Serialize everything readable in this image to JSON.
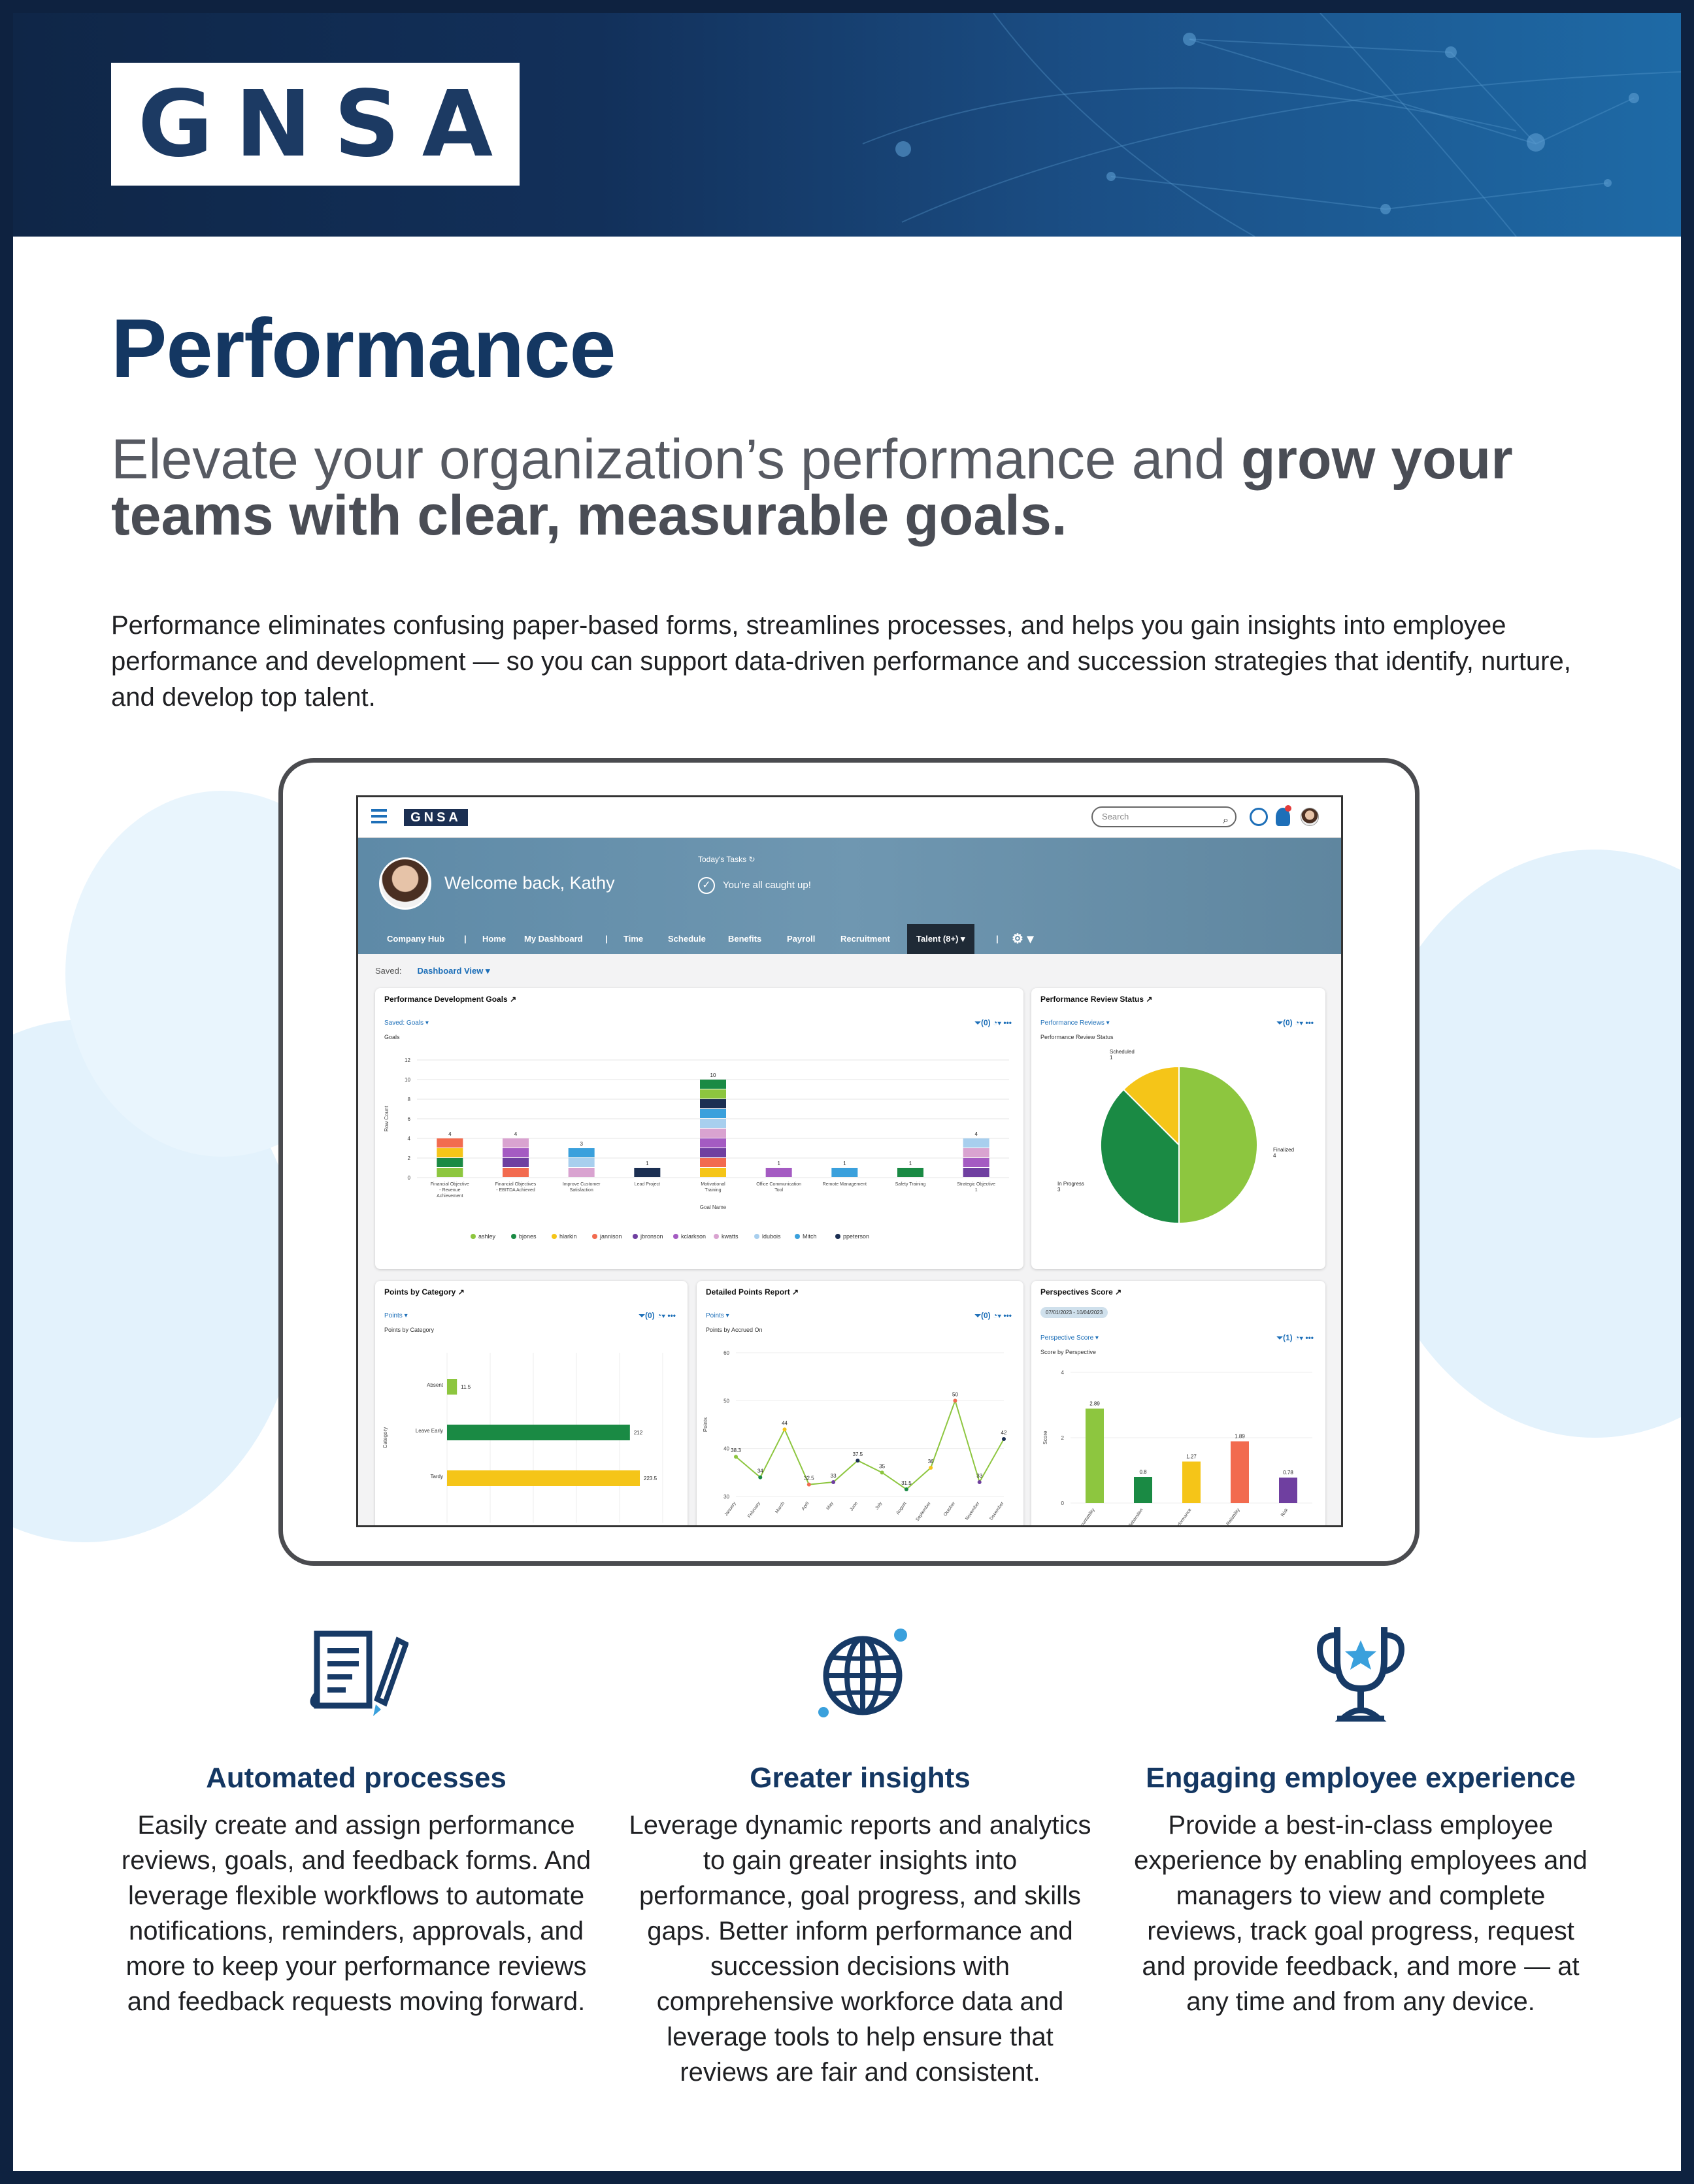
{
  "brand": {
    "logo": "GNSA"
  },
  "title": "Performance",
  "subtitle": {
    "regular": "Elevate your organization’s performance and ",
    "bold": "grow your teams with clear, measurable goals."
  },
  "intro": "Performance eliminates confusing paper-based forms, streamlines processes, and helps you gain insights into employee performance and development — so you can support data-driven performance and succession strategies that identify, nurture, and develop top talent.",
  "app": {
    "logo": "GNSA",
    "search_placeholder": "Search",
    "welcome": "Welcome back, Kathy",
    "tasks_label": "Today's Tasks",
    "caught_up": "You're all caught up!",
    "nav": [
      "Company Hub",
      "Home",
      "My Dashboard",
      "Time",
      "Schedule",
      "Benefits",
      "Payroll",
      "Recruitment",
      "Talent (8+)"
    ],
    "saved_label": "Saved:",
    "saved_view": "Dashboard View ▾",
    "colors": {
      "accent": "#1d6fb8",
      "hero": "#6f97b1"
    }
  },
  "cards": {
    "goals": {
      "title": "Performance Development Goals ↗",
      "saved": "Saved:  Goals ▾",
      "sub": "Goals",
      "tools": "⏷(0) ◔▾ •••"
    },
    "review": {
      "title": "Performance Review Status ↗",
      "saved": "Performance Reviews ▾",
      "sub": "Performance Review Status",
      "tools": "⏷(0) ◔▾ •••"
    },
    "points": {
      "title": "Points by Category ↗",
      "saved": "Points ▾",
      "sub": "Points by Category",
      "tools": "⏷(0) ◔▾ •••"
    },
    "detailed": {
      "title": "Detailed Points Report ↗",
      "saved": "Points ▾",
      "sub": "Points by Accrued On",
      "tools": "⏷(0) ◔▾ •••"
    },
    "perspectives": {
      "title": "Perspectives Score ↗",
      "saved": "Perspective Score ▾",
      "sub": "Score by Perspective",
      "tools": "⏷(1) ◔▾ •••",
      "date": "07/01/2023 - 10/04/2023"
    }
  },
  "chart_data": [
    {
      "type": "bar",
      "title": "Goals",
      "xlabel": "Goal Name",
      "ylabel": "Row Count",
      "ylim": [
        0,
        12
      ],
      "yticks": [
        0,
        2,
        4,
        6,
        8,
        10,
        12
      ],
      "categories": [
        "Financial Objective - Revenue Achievement",
        "Financial Objectives - EBITDA Achieved",
        "Improve Customer Satisfaction",
        "Lead Project",
        "Motivational Training",
        "Office Communication Tool",
        "Remote Management",
        "Safety Training",
        "Strategic Objective 1"
      ],
      "values": [
        4,
        4,
        3,
        1,
        10,
        1,
        1,
        1,
        4
      ],
      "legend": [
        "ashley",
        "bjones",
        "hlarkin",
        "jannison",
        "jbronson",
        "kclarkson",
        "kwatts",
        "ldubois",
        "Mitch",
        "ppeterson"
      ],
      "legend_colors": [
        "#8dc63f",
        "#1a8a44",
        "#f5c518",
        "#f26b4f",
        "#6f3fa0",
        "#a45bc2",
        "#d9a3d0",
        "#a8cfee",
        "#3aa0dc",
        "#1b2f52"
      ],
      "legend_position": "bottom"
    },
    {
      "type": "pie",
      "title": "Performance Review Status",
      "labels": [
        "Finalized",
        "In Progress",
        "Scheduled"
      ],
      "values": [
        4,
        3,
        1
      ],
      "colors": [
        "#8dc63f",
        "#1a8a44",
        "#f5c518"
      ]
    },
    {
      "type": "bar",
      "orientation": "horizontal",
      "title": "Points by Category",
      "ylabel": "Category",
      "categories": [
        "Absent",
        "Leave Early",
        "Tardy"
      ],
      "values": [
        11.5,
        212,
        223.5
      ],
      "colors": [
        "#8dc63f",
        "#1a8a44",
        "#f5c518"
      ],
      "xticks": [
        0,
        50,
        100,
        150,
        200,
        250
      ],
      "xlim": [
        0,
        250
      ]
    },
    {
      "type": "line",
      "title": "Points by Accrued On",
      "ylabel": "Points",
      "ylim": [
        30,
        60
      ],
      "yticks": [
        30,
        40,
        50,
        60
      ],
      "categories": [
        "January",
        "February",
        "March",
        "April",
        "May",
        "June",
        "July",
        "August",
        "September",
        "October",
        "November",
        "December"
      ],
      "values": [
        38.3,
        34,
        44,
        32.5,
        33,
        37.5,
        35,
        31.5,
        36,
        50,
        33,
        42
      ]
    },
    {
      "type": "bar",
      "title": "Score by Perspective",
      "ylabel": "Score",
      "ylim": [
        0,
        4
      ],
      "yticks": [
        0,
        2,
        4
      ],
      "categories": [
        "Accountability",
        "Collaboration",
        "Performance",
        "Reliability",
        "Risk"
      ],
      "values": [
        2.89,
        0.8,
        1.27,
        1.89,
        0.78
      ],
      "colors": [
        "#8dc63f",
        "#1a8a44",
        "#f5c518",
        "#f26b4f",
        "#6f3fa0"
      ]
    }
  ],
  "features": [
    {
      "icon": "document-pen-icon",
      "title": "Automated processes",
      "text": "Easily create and assign performance reviews, goals, and feedback forms. And leverage flexible workflows to automate notifications, reminders, approvals, and more to keep your performance reviews and feedback requests moving forward."
    },
    {
      "icon": "globe-arrows-icon",
      "title": "Greater insights",
      "text": "Leverage dynamic reports and analytics to gain greater insights into performance, goal progress, and skills gaps. Better inform performance and succession decisions with comprehensive workforce data and leverage tools to help ensure that reviews are fair and consistent."
    },
    {
      "icon": "trophy-star-icon",
      "title": "Engaging employee experience",
      "text": "Provide a best-in-class employee experience by enabling employees and managers to view and complete reviews, track goal progress, request and provide feedback, and more — at any time and from any device."
    }
  ]
}
